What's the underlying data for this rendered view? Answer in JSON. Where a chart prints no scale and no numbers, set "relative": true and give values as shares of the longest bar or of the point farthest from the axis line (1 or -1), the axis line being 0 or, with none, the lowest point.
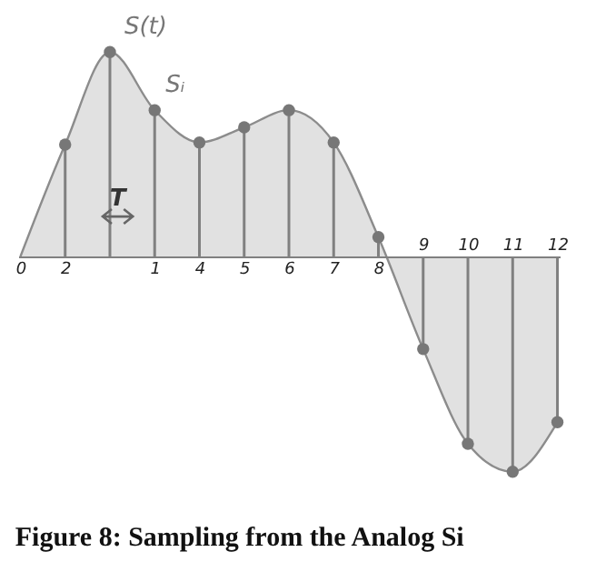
{
  "chart_data": {
    "type": "area",
    "title": "Figure 8:  Sampling from the Analog Si",
    "relative": true,
    "categories": [
      "0",
      "2",
      null,
      "1",
      "4",
      "5",
      "6",
      "7",
      "8",
      "9",
      "10",
      "11",
      "12"
    ],
    "series": [
      {
        "name": "S(t)",
        "type": "area",
        "color": "#d4d4d4",
        "values": [
          0,
          0.52,
          0.95,
          0.68,
          0.53,
          0.6,
          0.68,
          0.53,
          0.09,
          -0.43,
          -0.87,
          -1,
          -0.77
        ]
      },
      {
        "name": "Sᵢ",
        "type": "lollipop",
        "color": "#808080",
        "values": [
          null,
          0.52,
          0.95,
          0.68,
          0.53,
          0.6,
          0.68,
          0.53,
          0.09,
          -0.43,
          -0.87,
          -1,
          -0.77
        ]
      }
    ],
    "annotations": [
      "T"
    ]
  }
}
